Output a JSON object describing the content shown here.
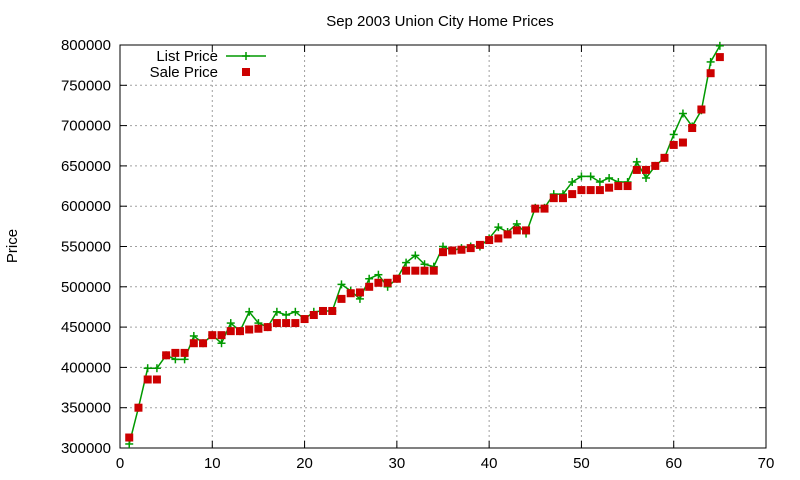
{
  "chart_data": {
    "type": "line",
    "title": "Sep 2003 Union City Home Prices",
    "xlabel": "",
    "ylabel": "Price",
    "xlim": [
      0,
      70
    ],
    "ylim": [
      300000,
      800000
    ],
    "xticks": [
      0,
      10,
      20,
      30,
      40,
      50,
      60,
      70
    ],
    "yticks": [
      300000,
      350000,
      400000,
      450000,
      500000,
      550000,
      600000,
      650000,
      700000,
      750000,
      800000
    ],
    "grid": true,
    "legend": "top-left",
    "x": [
      1,
      2,
      3,
      4,
      5,
      6,
      7,
      8,
      9,
      10,
      11,
      12,
      13,
      14,
      15,
      16,
      17,
      18,
      19,
      20,
      21,
      22,
      23,
      24,
      25,
      26,
      27,
      28,
      29,
      30,
      31,
      32,
      33,
      34,
      35,
      36,
      37,
      38,
      39,
      40,
      41,
      42,
      43,
      44,
      45,
      46,
      47,
      48,
      49,
      50,
      51,
      52,
      53,
      54,
      55,
      56,
      57,
      58,
      59,
      60,
      61,
      62,
      63,
      64,
      65
    ],
    "series": [
      {
        "name": "List Price",
        "style": "line-plus",
        "color": "#009900",
        "values": [
          305000,
          350000,
          399000,
          399000,
          415000,
          410000,
          410000,
          439000,
          430000,
          440000,
          430000,
          455000,
          445000,
          469000,
          455000,
          450000,
          469000,
          465000,
          469000,
          460000,
          469000,
          470000,
          470000,
          503000,
          495000,
          485000,
          510000,
          515000,
          500000,
          510000,
          530000,
          539000,
          528000,
          525000,
          550000,
          545000,
          548000,
          550000,
          550000,
          560000,
          574000,
          568000,
          578000,
          566000,
          598000,
          598000,
          615000,
          615000,
          630000,
          637000,
          637000,
          630000,
          635000,
          630000,
          630000,
          655000,
          635000,
          650000,
          660000,
          689000,
          715000,
          699000,
          719000,
          779000,
          799000
        ]
      },
      {
        "name": "Sale Price",
        "style": "square",
        "color": "#cc0000",
        "values": [
          313000,
          350000,
          385000,
          385000,
          415000,
          418000,
          418000,
          430000,
          430000,
          440000,
          440000,
          445000,
          445000,
          447000,
          448000,
          450000,
          455000,
          455000,
          455000,
          460000,
          465000,
          470000,
          470000,
          485000,
          492000,
          493000,
          500000,
          505000,
          505000,
          510000,
          520000,
          520000,
          520000,
          520000,
          543000,
          545000,
          546000,
          548000,
          552000,
          558000,
          560000,
          565000,
          570000,
          570000,
          597000,
          597000,
          610000,
          610000,
          615000,
          620000,
          620000,
          620000,
          623000,
          625000,
          625000,
          645000,
          645000,
          650000,
          660000,
          676000,
          679000,
          697000,
          720000,
          765000,
          785000
        ]
      }
    ]
  }
}
